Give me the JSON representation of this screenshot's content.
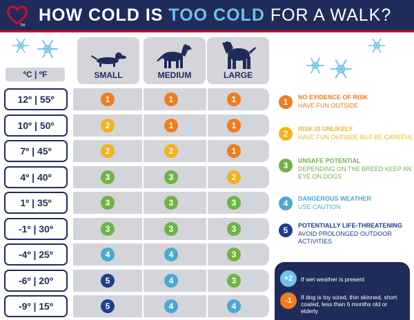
{
  "header": {
    "title_part1": "HOW COLD IS ",
    "title_highlight": "TOO COLD",
    "title_part2": " FOR A WALK?",
    "logo_text": "TM"
  },
  "columns": {
    "unit_header": "ºC  |  ºF",
    "small": "SMALL",
    "medium": "MEDIUM",
    "large": "LARGE"
  },
  "rows": [
    {
      "temp": "12º | 55º",
      "small": "1",
      "medium": "1",
      "large": "1"
    },
    {
      "temp": "10º | 50º",
      "small": "2",
      "medium": "1",
      "large": "1"
    },
    {
      "temp": "7º | 45º",
      "small": "2",
      "medium": "2",
      "large": "1"
    },
    {
      "temp": "4º | 40º",
      "small": "3",
      "medium": "3",
      "large": "2"
    },
    {
      "temp": "1º | 35º",
      "small": "3",
      "medium": "3",
      "large": "3"
    },
    {
      "temp": "-1º | 30º",
      "small": "3",
      "medium": "3",
      "large": "3"
    },
    {
      "temp": "-4º | 25º",
      "small": "4",
      "medium": "4",
      "large": "3"
    },
    {
      "temp": "-6º | 20º",
      "small": "5",
      "medium": "4",
      "large": "3"
    },
    {
      "temp": "-9º | 15º",
      "small": "5",
      "medium": "4",
      "large": "4"
    }
  ],
  "levels": [
    {
      "num": "1",
      "color": "#f07c1f",
      "title": "NO EVIDENCE OF RISK",
      "desc": "HAVE FUN OUTSIDE"
    },
    {
      "num": "2",
      "color": "#f6b21b",
      "title": "RISK IS UNLIKELY",
      "desc": "HAVE FUN OUTSIDE BUT BE CAREFUL"
    },
    {
      "num": "3",
      "color": "#6fb344",
      "title": "UNSAFE POTENTIAL",
      "desc": "DEPENDING ON THE BREED KEEP AN EYE ON DOGS"
    },
    {
      "num": "4",
      "color": "#4aa8d3",
      "title": "DANGEROUS WEATHER",
      "desc": "USE CAUTION"
    },
    {
      "num": "5",
      "color": "#1c3f8f",
      "title": "POTENTIALLY LIFE-THREATENING",
      "desc": "AVOID PROLONGED OUTDOOR ACTIVITIES"
    }
  ],
  "modifiers": [
    {
      "badge": "+2",
      "color": "#6cc3ea",
      "text": "If wet weather is present"
    },
    {
      "badge": "-1",
      "color": "#f07c1f",
      "text": "If dog is toy sized, thin skinned, short coated, less than 6 months old or elderly"
    }
  ]
}
